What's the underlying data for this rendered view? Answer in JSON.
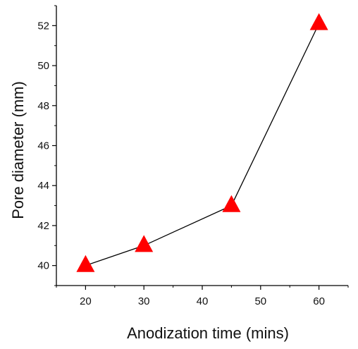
{
  "chart_data": {
    "type": "line",
    "title": "",
    "xlabel": "Anodization time (mins)",
    "ylabel": "Pore diameter (mm)",
    "xlim": [
      15,
      65
    ],
    "ylim": [
      39,
      53
    ],
    "xticks": [
      20,
      30,
      40,
      50,
      60
    ],
    "yticks": [
      40,
      42,
      44,
      46,
      48,
      50,
      52
    ],
    "grid": false,
    "legend": "none",
    "marker": "triangle",
    "series": [
      {
        "x": [
          20,
          30,
          45,
          60
        ],
        "y": [
          40.0,
          41.0,
          43.0,
          52.1
        ],
        "color": "#ff0000",
        "line_color": "#000000"
      }
    ]
  }
}
